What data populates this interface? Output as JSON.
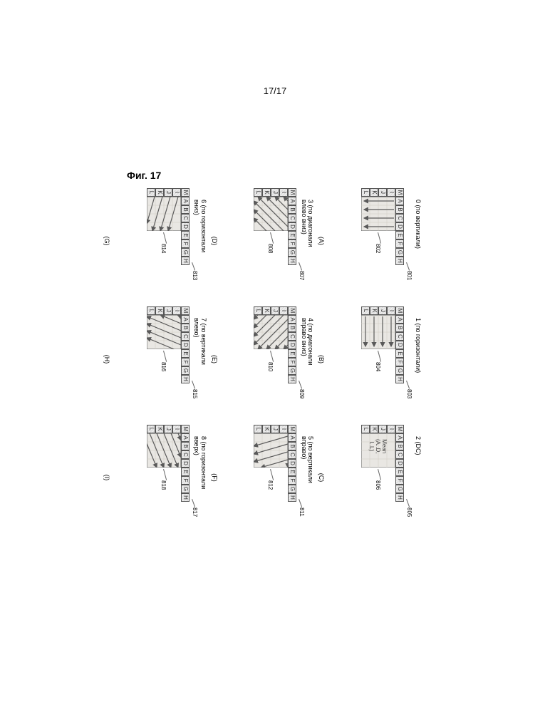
{
  "page_number": "17/17",
  "figure_label": "Фиг. 17",
  "ref_top": [
    "M",
    "A",
    "B",
    "C",
    "D",
    "E",
    "F",
    "G",
    "H"
  ],
  "ref_left": [
    "I",
    "J",
    "K",
    "L"
  ],
  "pred_size": 48,
  "cell_size": 12,
  "colors": {
    "cell_border": "#555555",
    "pred_border": "#606060",
    "pred_fill": "#e9e7e3",
    "arrow": "#5a5a5a",
    "callout": "#666666"
  },
  "modes": [
    {
      "idx": 0,
      "letter": "(A)",
      "title": "0 (по вертикали)",
      "pattern": "vertical",
      "callouts": [
        801,
        802
      ]
    },
    {
      "idx": 1,
      "letter": "(B)",
      "title": "1 (по горизонтали)",
      "pattern": "horizontal",
      "callouts": [
        803,
        804
      ]
    },
    {
      "idx": 2,
      "letter": "(C)",
      "title": "2 (DC)",
      "pattern": "dc",
      "callouts": [
        805,
        806
      ],
      "dc_text": "Mean\n(A..D,\nI..L)"
    },
    {
      "idx": 3,
      "letter": "(D)",
      "title": "3 (по диагонали\nвлево вниз)",
      "pattern": "diag_dl",
      "callouts": [
        807,
        808
      ]
    },
    {
      "idx": 4,
      "letter": "(E)",
      "title": "4 (по диагонали\nвправо вниз)",
      "pattern": "diag_dr",
      "callouts": [
        809,
        810
      ]
    },
    {
      "idx": 5,
      "letter": "(F)",
      "title": "5 (по вертикали\nвправо)",
      "pattern": "vert_r",
      "callouts": [
        811,
        812
      ]
    },
    {
      "idx": 6,
      "letter": "(G)",
      "title": "6 (по горизонтали\nвниз)",
      "pattern": "horiz_d",
      "callouts": [
        813,
        814
      ]
    },
    {
      "idx": 7,
      "letter": "(H)",
      "title": "7 (по вертикали\nвлево)",
      "pattern": "vert_l",
      "callouts": [
        815,
        816
      ]
    },
    {
      "idx": 8,
      "letter": "(I)",
      "title": "8 (по горизонтали\nвверх)",
      "pattern": "horiz_u",
      "callouts": [
        817,
        818
      ]
    }
  ]
}
